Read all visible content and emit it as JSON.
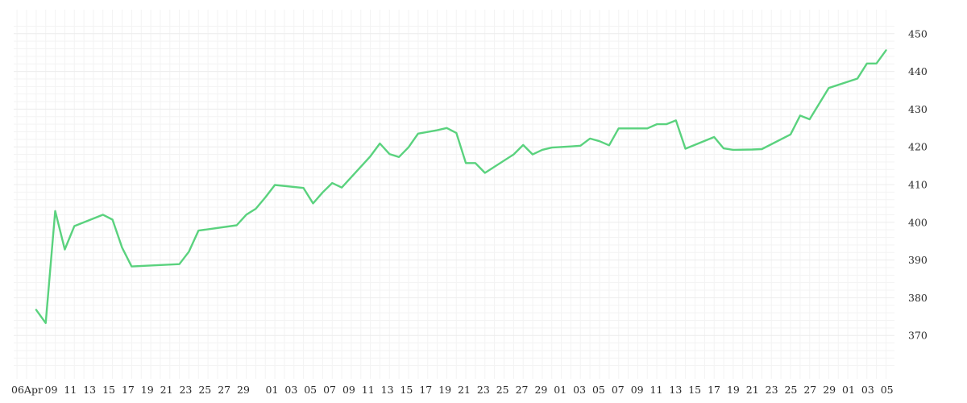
{
  "chart_data": {
    "type": "line",
    "title": "",
    "xlabel": "",
    "ylabel": "",
    "x_tick_labels": [
      "06Apr",
      "09",
      "11",
      "13",
      "15",
      "17",
      "19",
      "21",
      "23",
      "25",
      "27",
      "29",
      "01",
      "03",
      "05",
      "07",
      "09",
      "11",
      "13",
      "15",
      "17",
      "19",
      "21",
      "23",
      "25",
      "27",
      "29",
      "01",
      "03",
      "05",
      "07",
      "09",
      "11",
      "13",
      "15",
      "17",
      "19",
      "21",
      "23",
      "25",
      "27",
      "29",
      "01",
      "03",
      "05"
    ],
    "y_ticks": [
      370,
      380,
      390,
      400,
      410,
      420,
      430,
      440,
      450
    ],
    "ylim": [
      360,
      452
    ],
    "grid": true,
    "y_axis_side": "right",
    "colors": {
      "line": "#5ad27e",
      "grid": "#ececec",
      "text": "#2b2b2b"
    },
    "series": [
      {
        "points": [
          [
            1,
            376.8
          ],
          [
            2,
            373.3
          ],
          [
            3,
            403.0
          ],
          [
            4,
            392.8
          ],
          [
            5,
            399.0
          ],
          [
            8,
            402.0
          ],
          [
            9,
            400.7
          ],
          [
            10,
            393.3
          ],
          [
            11,
            388.3
          ],
          [
            16,
            388.9
          ],
          [
            17,
            392.2
          ],
          [
            18,
            397.8
          ],
          [
            22,
            399.2
          ],
          [
            23,
            402.0
          ],
          [
            24,
            403.6
          ],
          [
            25,
            406.6
          ],
          [
            26,
            409.9
          ],
          [
            29,
            409.1
          ],
          [
            30,
            405.0
          ],
          [
            31,
            407.9
          ],
          [
            32,
            410.4
          ],
          [
            33,
            409.2
          ],
          [
            36,
            417.5
          ],
          [
            37,
            420.9
          ],
          [
            38,
            418.1
          ],
          [
            39,
            417.3
          ],
          [
            40,
            419.9
          ],
          [
            41,
            423.5
          ],
          [
            43,
            424.4
          ],
          [
            44,
            425.0
          ],
          [
            45,
            423.7
          ],
          [
            46,
            415.7
          ],
          [
            47,
            415.7
          ],
          [
            48,
            413.1
          ],
          [
            51,
            418.0
          ],
          [
            52,
            420.5
          ],
          [
            53,
            418.0
          ],
          [
            54,
            419.2
          ],
          [
            55,
            419.8
          ],
          [
            57,
            420.1
          ],
          [
            58,
            420.3
          ],
          [
            59,
            422.2
          ],
          [
            60,
            421.5
          ],
          [
            61,
            420.4
          ],
          [
            62,
            424.9
          ],
          [
            65,
            424.9
          ],
          [
            66,
            426.0
          ],
          [
            67,
            426.0
          ],
          [
            68,
            427.0
          ],
          [
            69,
            419.5
          ],
          [
            72,
            422.6
          ],
          [
            73,
            419.6
          ],
          [
            74,
            419.2
          ],
          [
            76,
            419.3
          ],
          [
            77,
            419.4
          ],
          [
            80,
            423.3
          ],
          [
            81,
            428.3
          ],
          [
            82,
            427.3
          ],
          [
            83,
            431.4
          ],
          [
            84,
            435.6
          ],
          [
            87,
            438.1
          ],
          [
            88,
            442.1
          ],
          [
            89,
            442.1
          ],
          [
            90,
            445.6
          ]
        ]
      }
    ]
  }
}
